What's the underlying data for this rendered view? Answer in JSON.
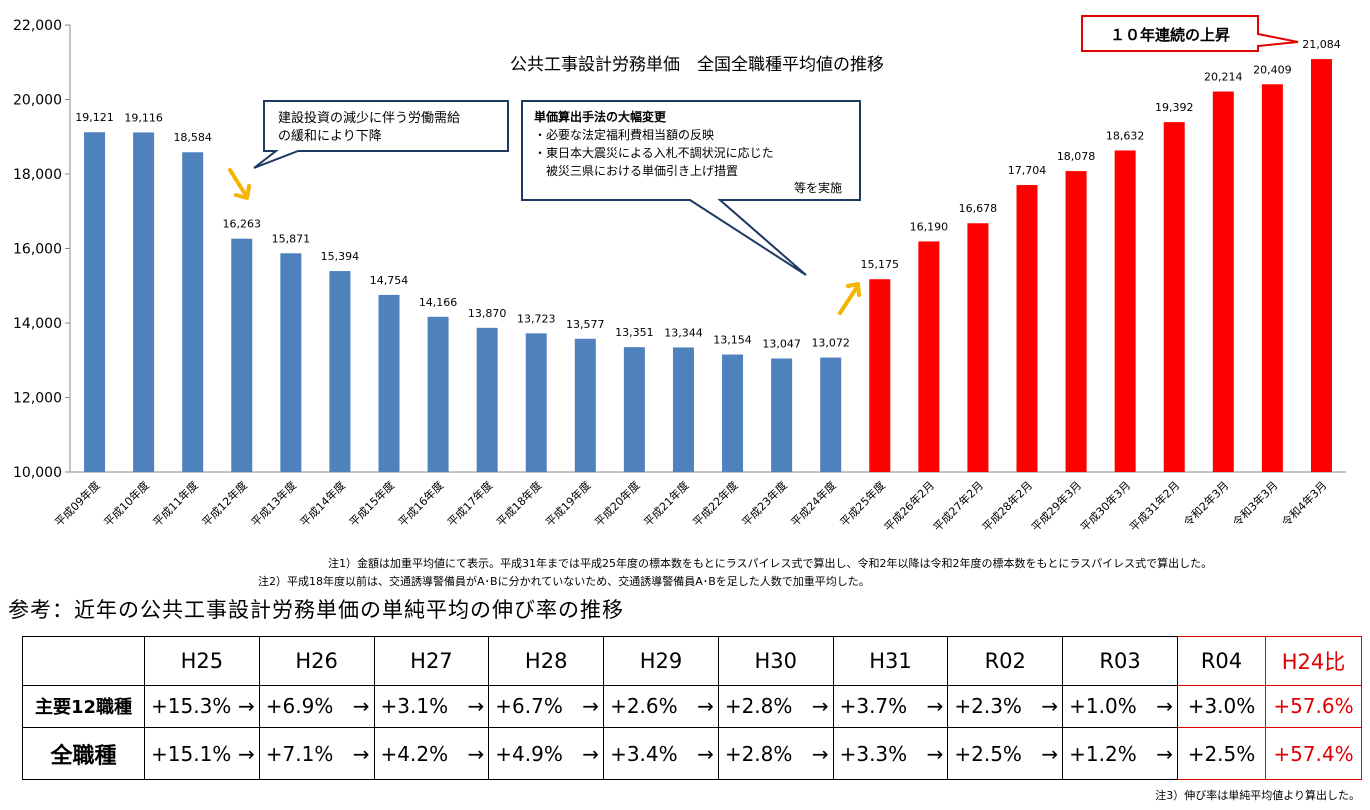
{
  "chart_data": {
    "type": "bar",
    "title": "公共工事設計労務単価　全国全職種平均値の推移",
    "categories": [
      "平成09年度",
      "平成10年度",
      "平成11年度",
      "平成12年度",
      "平成13年度",
      "平成14年度",
      "平成15年度",
      "平成16年度",
      "平成17年度",
      "平成18年度",
      "平成19年度",
      "平成20年度",
      "平成21年度",
      "平成22年度",
      "平成23年度",
      "平成24年度",
      "平成25年度",
      "平成26年2月",
      "平成27年2月",
      "平成28年2月",
      "平成29年3月",
      "平成30年3月",
      "平成31年2月",
      "令和2年3月",
      "令和3年3月",
      "令和4年3月"
    ],
    "values": [
      19121,
      19116,
      18584,
      16263,
      15871,
      15394,
      14754,
      14166,
      13870,
      13723,
      13577,
      13351,
      13344,
      13154,
      13047,
      13072,
      15175,
      16190,
      16678,
      17704,
      18078,
      18632,
      19392,
      20214,
      20409,
      21084
    ],
    "data_labels": [
      "19,121",
      "19,116",
      "18,584",
      "16,263",
      "15,871",
      "15,394",
      "14,754",
      "14,166",
      "13,870",
      "13,723",
      "13,577",
      "13,351",
      "13,344",
      "13,154",
      "13,047",
      "13,072",
      "15,175",
      "16,190",
      "16,678",
      "17,704",
      "18,078",
      "18,632",
      "19,392",
      "20,214",
      "20,409",
      "21,084"
    ],
    "bar_colors": [
      "#4f81bd",
      "#4f81bd",
      "#4f81bd",
      "#4f81bd",
      "#4f81bd",
      "#4f81bd",
      "#4f81bd",
      "#4f81bd",
      "#4f81bd",
      "#4f81bd",
      "#4f81bd",
      "#4f81bd",
      "#4f81bd",
      "#4f81bd",
      "#4f81bd",
      "#4f81bd",
      "#ff0000",
      "#ff0000",
      "#ff0000",
      "#ff0000",
      "#ff0000",
      "#ff0000",
      "#ff0000",
      "#ff0000",
      "#ff0000",
      "#ff0000"
    ],
    "ylim": [
      10000,
      22000
    ],
    "yticks": [
      10000,
      12000,
      14000,
      16000,
      18000,
      20000,
      22000
    ],
    "ytick_labels": [
      "10,000",
      "12,000",
      "14,000",
      "16,000",
      "18,000",
      "20,000",
      "22,000"
    ],
    "grid": false,
    "xlabel": "",
    "ylabel": "",
    "callouts": {
      "decline_lines": [
        "建設投資の減少に伴う労働需給",
        "の緩和により下降"
      ],
      "method_title": "単価算出手法の大幅変更",
      "method_lines": [
        "・必要な法定福利費相当額の反映",
        "・東日本大震災による入札不調状況に応じた",
        "　被災三県における単価引き上げ措置"
      ],
      "method_tail": "等を実施",
      "rise": "１０年連続の上昇"
    },
    "colors": {
      "blue": "#4f81bd",
      "red": "#ff0000",
      "arrow": "#f5b400",
      "callout_border": "#1f3864"
    }
  },
  "notes": [
    "注1）金額は加重平均値にて表示。平成31年までは平成25年度の標本数をもとにラスパイレス式で算出し、令和2年以降は令和2年度の標本数をもとにラスパイレス式で算出した。",
    "注2）平成18年度以前は、交通誘導警備員がA･Bに分かれていないため、交通誘導警備員A･Bを足した人数で加重平均した。"
  ],
  "reference_title": "参考：近年の公共工事設計労務単価の単純平均の伸び率の推移",
  "growth_table": {
    "headers": [
      "H25",
      "H26",
      "H27",
      "H28",
      "H29",
      "H30",
      "H31",
      "R02",
      "R03",
      "R04",
      "H24比"
    ],
    "arrow": "→",
    "rows": [
      {
        "label": "主要12職種",
        "values": [
          "+15.3%",
          "+6.9%",
          "+3.1%",
          "+6.7%",
          "+2.6%",
          "+2.8%",
          "+3.7%",
          "+2.3%",
          "+1.0%",
          "+3.0%",
          "+57.6%"
        ]
      },
      {
        "label": "全職種",
        "values": [
          "+15.1%",
          "+7.1%",
          "+4.2%",
          "+4.9%",
          "+3.4%",
          "+2.8%",
          "+3.3%",
          "+2.5%",
          "+1.2%",
          "+2.5%",
          "+57.4%"
        ]
      }
    ]
  },
  "footnote": "注3）伸び率は単純平均値より算出した。"
}
